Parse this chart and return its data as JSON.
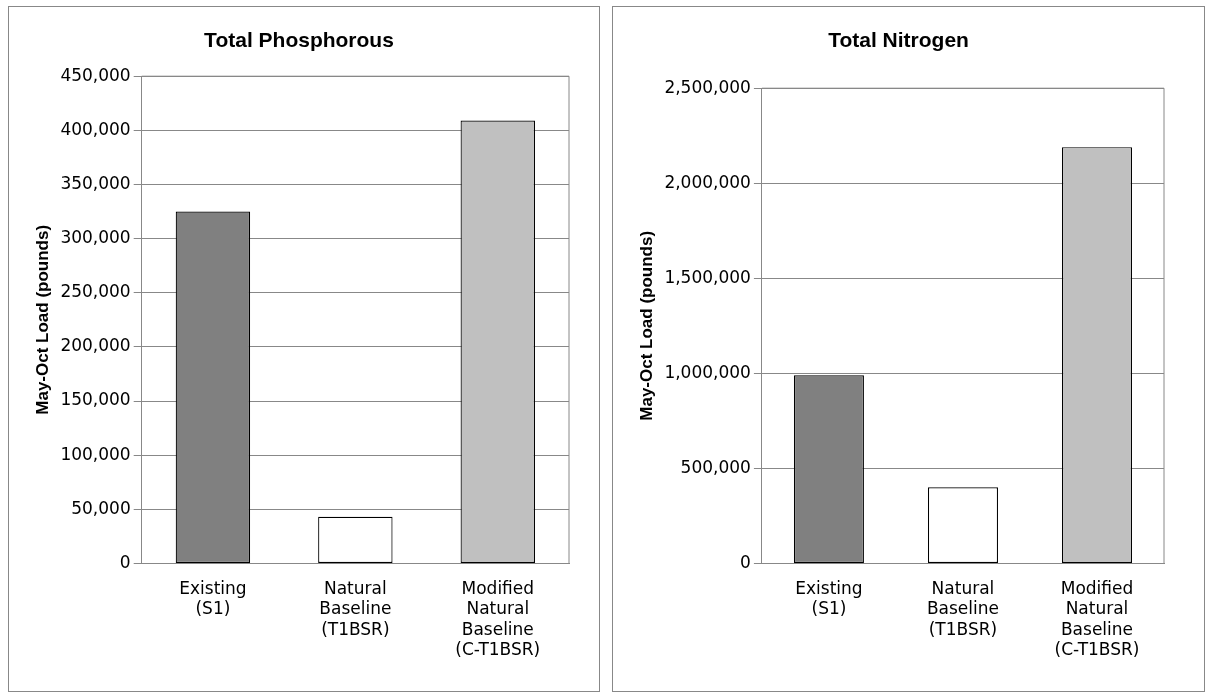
{
  "chart_data": [
    {
      "type": "bar",
      "title": "Total Phosphorous",
      "ylabel": "May-Oct Load (pounds)",
      "categories": [
        "Existing (S1)",
        "Natural Baseline (T1BSR)",
        "Modified Natural Baseline (C-T1BSR)"
      ],
      "values": [
        325000,
        43000,
        409000
      ],
      "colors": [
        "#808080",
        "#ffffff",
        "#c0c0c0"
      ],
      "ylim": [
        0,
        450000
      ],
      "yticks": [
        0,
        {
          "value": 50000,
          "label": "50,000"
        },
        {
          "value": 100000,
          "label": "100,000"
        },
        {
          "value": 150000,
          "label": "150,000"
        },
        {
          "value": 200000,
          "label": "200,000"
        },
        {
          "value": 250000,
          "label": "250,000"
        },
        {
          "value": 300000,
          "label": "300,000"
        },
        {
          "value": 350000,
          "label": "350,000"
        },
        {
          "value": 400000,
          "label": "400,000"
        },
        {
          "value": 450000,
          "label": "450,000"
        }
      ],
      "grid": "y"
    },
    {
      "type": "bar",
      "title": "Total Nitrogen",
      "ylabel": "May-Oct Load (pounds)",
      "categories": [
        "Existing (S1)",
        "Natural Baseline (T1BSR)",
        "Modified Natural Baseline (C-T1BSR)"
      ],
      "values": [
        990000,
        400000,
        2190000
      ],
      "colors": [
        "#808080",
        "#ffffff",
        "#c0c0c0"
      ],
      "ylim": [
        0,
        2500000
      ],
      "yticks": [
        0,
        {
          "value": 500000,
          "label": "500,000"
        },
        {
          "value": 1000000,
          "label": "1,000,000"
        },
        {
          "value": 1500000,
          "label": "1,500,000"
        },
        {
          "value": 2000000,
          "label": "2,000,000"
        },
        {
          "value": 2500000,
          "label": "2,500,000"
        }
      ],
      "grid": "y"
    }
  ]
}
